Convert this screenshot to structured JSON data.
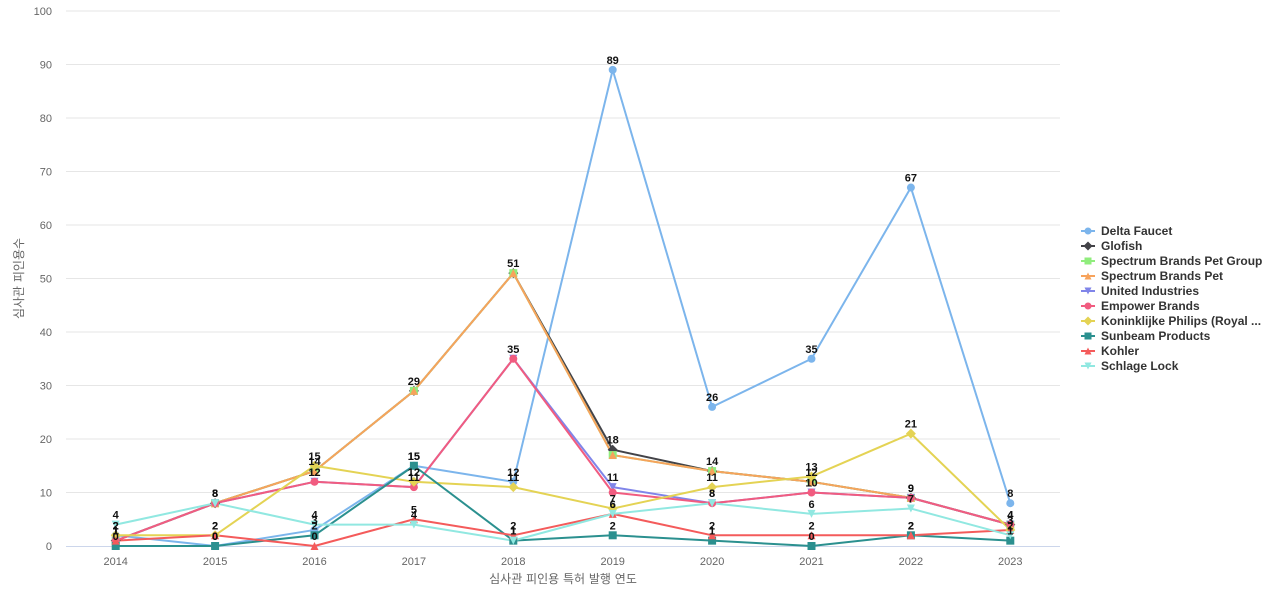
{
  "chart_data": {
    "type": "line",
    "title": "",
    "xlabel": "심사관 피인용 특허 발행 연도",
    "ylabel": "심사관 피인용수",
    "ylim": [
      0,
      100
    ],
    "y_ticks": [
      0,
      10,
      20,
      30,
      40,
      50,
      60,
      70,
      80,
      90,
      100
    ],
    "grid": true,
    "legend_position": "right",
    "categories": [
      "2014",
      "2015",
      "2016",
      "2017",
      "2018",
      "2019",
      "2020",
      "2021",
      "2022",
      "2023"
    ],
    "series": [
      {
        "name": "Delta Faucet",
        "color": "#7cb5ec",
        "marker": "circle",
        "values": [
          2,
          0,
          3,
          15,
          12,
          89,
          26,
          35,
          67,
          8
        ],
        "labels": [
          2,
          0,
          3,
          15,
          12,
          89,
          26,
          35,
          67,
          8
        ]
      },
      {
        "name": "Glofish",
        "color": "#434348",
        "marker": "diamond",
        "values": [
          1,
          8,
          14,
          29,
          51,
          18,
          14,
          12,
          9,
          4
        ],
        "labels": [
          1,
          8,
          14,
          29,
          51,
          18,
          14,
          12,
          9,
          4
        ]
      },
      {
        "name": "Spectrum Brands Pet Group",
        "color": "#90ed7d",
        "marker": "square",
        "values": [
          1,
          8,
          14,
          29,
          51,
          17,
          14,
          12,
          9,
          4
        ],
        "labels": []
      },
      {
        "name": "Spectrum Brands Pet",
        "color": "#f7a35c",
        "marker": "triangle",
        "values": [
          1,
          8,
          14,
          29,
          51,
          17,
          14,
          12,
          9,
          4
        ],
        "labels": []
      },
      {
        "name": "United Industries",
        "color": "#8085e9",
        "marker": "triangle-down",
        "values": [
          1,
          8,
          12,
          11,
          35,
          11,
          8,
          10,
          9,
          4
        ],
        "labels": [
          1,
          8,
          12,
          11,
          35,
          11,
          8,
          10,
          9,
          4
        ]
      },
      {
        "name": "Empower Brands",
        "color": "#f15c80",
        "marker": "circle",
        "values": [
          1,
          8,
          12,
          11,
          35,
          10,
          8,
          10,
          9,
          4
        ],
        "labels": []
      },
      {
        "name": "Koninklijke Philips (Royal ...",
        "color": "#e4d354",
        "marker": "diamond",
        "values": [
          2,
          2,
          15,
          12,
          11,
          7,
          11,
          13,
          21,
          3
        ],
        "labels": [
          2,
          2,
          15,
          12,
          11,
          7,
          11,
          13,
          21,
          3
        ]
      },
      {
        "name": "Sunbeam Products",
        "color": "#2b908f",
        "marker": "square",
        "values": [
          0,
          0,
          2,
          15,
          1,
          2,
          1,
          0,
          2,
          1
        ],
        "labels": [
          0,
          0,
          2,
          15,
          1,
          2,
          1,
          0,
          2,
          1
        ]
      },
      {
        "name": "Kohler",
        "color": "#f45b5b",
        "marker": "triangle",
        "values": [
          1,
          2,
          0,
          5,
          2,
          6,
          2,
          2,
          2,
          3
        ],
        "labels": [
          1,
          2,
          0,
          5,
          2,
          6,
          2,
          2,
          2,
          3
        ]
      },
      {
        "name": "Schlage Lock",
        "color": "#91e8e1",
        "marker": "triangle-down",
        "values": [
          4,
          8,
          4,
          4,
          1,
          6,
          8,
          6,
          7,
          2
        ],
        "labels": [
          4,
          8,
          4,
          4,
          1,
          6,
          8,
          6,
          7,
          2
        ]
      }
    ]
  }
}
